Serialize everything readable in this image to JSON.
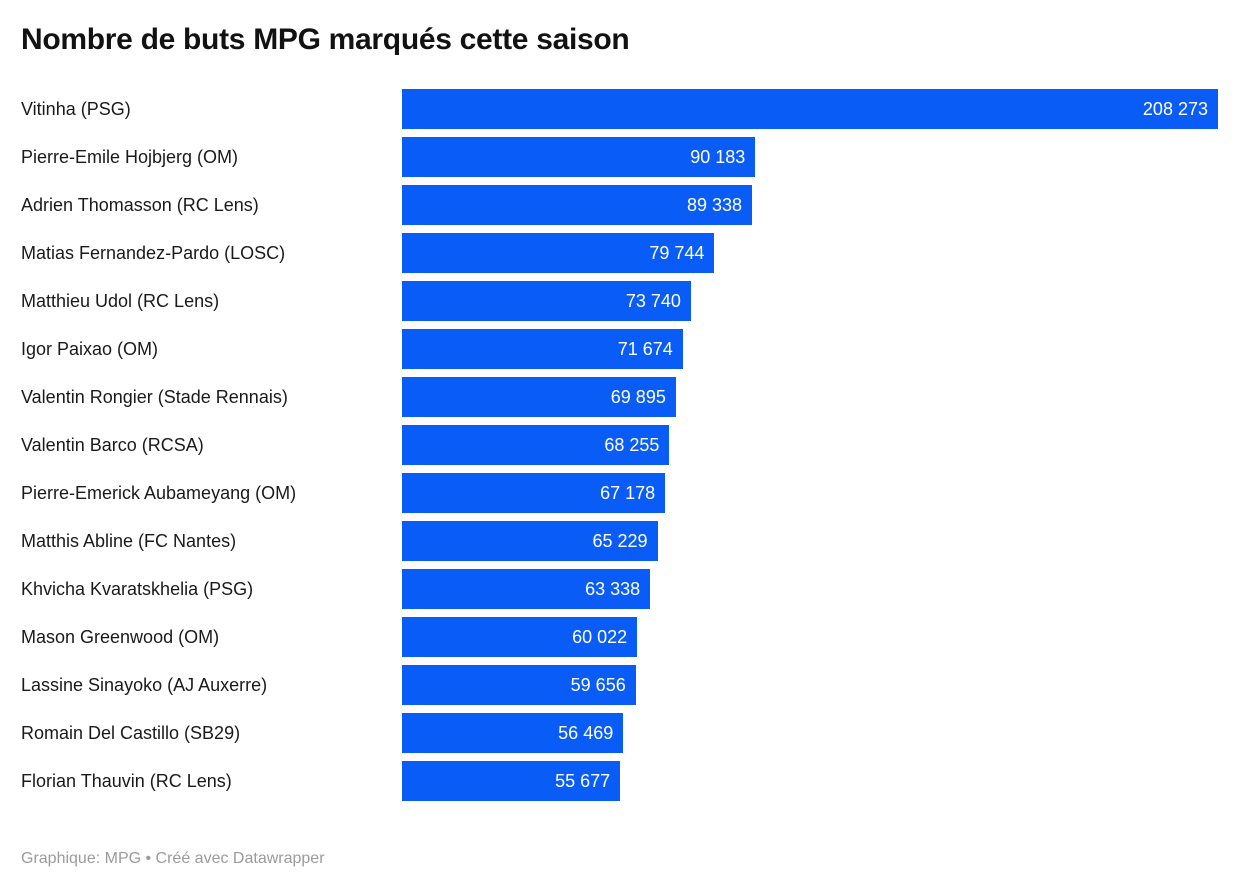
{
  "chart": {
    "title": "Nombre de buts MPG marqués cette saison"
  },
  "footer": {
    "text": "Graphique: MPG • Créé avec Datawrapper"
  },
  "colors": {
    "bar": "#0a5cf7",
    "value_label": "#ffffff",
    "title": "#121212",
    "row_label": "#1a1a1a",
    "footer": "#9b9b9b",
    "background": "#ffffff"
  },
  "chart_data": {
    "type": "bar",
    "orientation": "horizontal",
    "title": "Nombre de buts MPG marqués cette saison",
    "categories": [
      "Vitinha (PSG)",
      "Pierre-Emile Hojbjerg (OM)",
      "Adrien Thomasson (RC Lens)",
      "Matias Fernandez-Pardo (LOSC)",
      "Matthieu Udol (RC Lens)",
      "Igor Paixao (OM)",
      "Valentin Rongier (Stade Rennais)",
      "Valentin Barco (RCSA)",
      "Pierre-Emerick Aubameyang (OM)",
      "Matthis Abline (FC Nantes)",
      "Khvicha Kvaratskhelia (PSG)",
      "Mason Greenwood (OM)",
      "Lassine Sinayoko (AJ Auxerre)",
      "Romain Del Castillo (SB29)",
      "Florian Thauvin (RC Lens)"
    ],
    "values": [
      208273,
      90183,
      89338,
      79744,
      73740,
      71674,
      69895,
      68255,
      67178,
      65229,
      63338,
      60022,
      59656,
      56469,
      55677
    ],
    "value_labels": [
      "208 273",
      "90 183",
      "89 338",
      "79 744",
      "73 740",
      "71 674",
      "69 895",
      "68 255",
      "67 178",
      "65 229",
      "63 338",
      "60 022",
      "59 656",
      "56 469",
      "55 677"
    ],
    "xlabel": "",
    "ylabel": "",
    "xlim": [
      0,
      208273
    ],
    "grid": false,
    "legend": "none",
    "value_labels_position": "inside-end",
    "bar_color": "#0a5cf7"
  }
}
